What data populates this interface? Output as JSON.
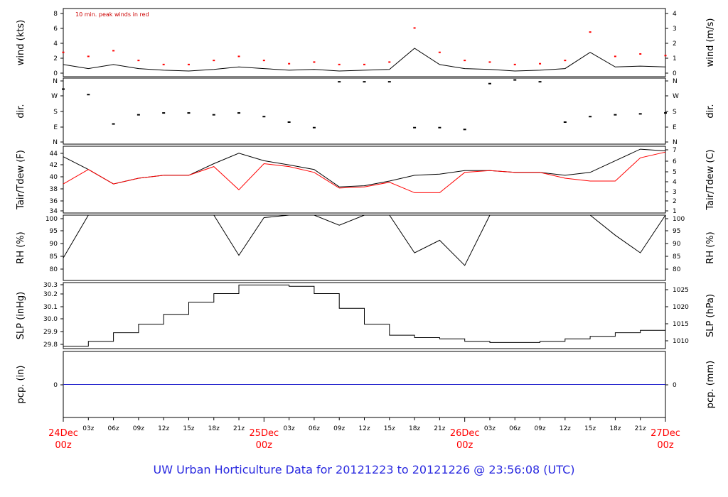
{
  "footer": {
    "text": "UW Urban Horticulture Data for 20121223  to  20121226 @ 23:56:08  (UTC)",
    "color": "#2a2ae0"
  },
  "colors": {
    "primary_series": "#000000",
    "secondary_series": "#ff0000",
    "precip_line": "#2222cc"
  },
  "x_axis": {
    "hour_ticks": [
      "03z",
      "06z",
      "09z",
      "12z",
      "15z",
      "18z",
      "21z",
      "03z",
      "06z",
      "09z",
      "12z",
      "15z",
      "18z",
      "21z",
      "03z",
      "06z",
      "09z",
      "12z",
      "15z",
      "18z",
      "21z"
    ],
    "date_labels": [
      {
        "day": "24Dec",
        "hour": "00z"
      },
      {
        "day": "25Dec",
        "hour": "00z"
      },
      {
        "day": "26Dec",
        "hour": "00z"
      },
      {
        "day": "27Dec",
        "hour": "00z"
      }
    ]
  },
  "chart_data": [
    {
      "type": "line",
      "id": "wind",
      "ylabel_left": "wind (kts)",
      "ylabel_right": "wind (m/s)",
      "annotation": "10 min. peak winds in red",
      "ylim": [
        0,
        8.4
      ],
      "left_ticks": [
        "0",
        "2",
        "4",
        "6",
        "8"
      ],
      "right_ticks": [
        "0",
        "1",
        "2",
        "3",
        "4"
      ],
      "x_hours": [
        0,
        3,
        6,
        9,
        12,
        15,
        18,
        21,
        24,
        27,
        30,
        33,
        36,
        39,
        42,
        45,
        48,
        51,
        54,
        57,
        60,
        63,
        66,
        69,
        72
      ],
      "series": [
        {
          "name": "wind",
          "values": [
            1.5,
            1.0,
            1.5,
            1.0,
            0.8,
            0.7,
            0.9,
            1.2,
            1.0,
            0.8,
            0.9,
            0.7,
            0.8,
            0.9,
            3.5,
            1.5,
            1.0,
            0.9,
            0.7,
            0.8,
            1.0,
            3.0,
            1.2,
            1.3,
            1.2
          ]
        },
        {
          "name": "10 min. peak winds",
          "values": [
            3.0,
            2.5,
            3.2,
            2.0,
            1.5,
            1.5,
            2.0,
            2.5,
            2.0,
            1.6,
            1.8,
            1.5,
            1.5,
            1.8,
            6.0,
            3.0,
            2.0,
            1.8,
            1.5,
            1.6,
            2.0,
            5.5,
            2.5,
            2.8,
            2.6
          ]
        }
      ]
    },
    {
      "type": "scatter",
      "id": "dir",
      "ylabel_left": "dir.",
      "ylabel_right": "dir.",
      "ylim": [
        0,
        360
      ],
      "left_ticks": [
        "N",
        "E",
        "S",
        "W",
        "N"
      ],
      "right_ticks": [
        "N",
        "E",
        "S",
        "W",
        "N"
      ],
      "x_hours": [
        0,
        3,
        6,
        9,
        12,
        15,
        18,
        21,
        24,
        27,
        30,
        33,
        36,
        39,
        42,
        45,
        48,
        51,
        54,
        57,
        60,
        63,
        66,
        69,
        72
      ],
      "series": [
        {
          "name": "dir",
          "values": [
            300,
            270,
            110,
            160,
            170,
            170,
            160,
            170,
            150,
            120,
            90,
            340,
            340,
            340,
            90,
            90,
            80,
            330,
            350,
            340,
            120,
            150,
            160,
            165,
            170
          ]
        }
      ]
    },
    {
      "type": "line",
      "id": "temp",
      "ylabel_left": "Tair/Tdew (F)",
      "ylabel_right": "Tair/Tdew (C)",
      "ylim": [
        33.5,
        45
      ],
      "left_ticks": [
        "34",
        "36",
        "38",
        "40",
        "42",
        "44"
      ],
      "right_ticks": [
        "1",
        "2",
        "3",
        "4",
        "5",
        "6",
        "7"
      ],
      "x_hours": [
        0,
        3,
        6,
        9,
        12,
        15,
        18,
        21,
        24,
        27,
        30,
        33,
        36,
        39,
        42,
        45,
        48,
        51,
        54,
        57,
        60,
        63,
        66,
        69,
        72
      ],
      "series": [
        {
          "name": "Tair",
          "values": [
            43.2,
            41.0,
            38.5,
            39.5,
            40.0,
            40.0,
            42.0,
            43.8,
            42.5,
            41.8,
            41.0,
            38.0,
            38.2,
            39.0,
            40.0,
            40.2,
            40.8,
            40.8,
            40.5,
            40.5,
            40.0,
            40.5,
            42.5,
            44.5,
            44.2
          ]
        },
        {
          "name": "Tdew",
          "values": [
            38.5,
            41.0,
            38.5,
            39.5,
            40.0,
            40.0,
            41.5,
            37.5,
            42.0,
            41.5,
            40.5,
            37.8,
            38.0,
            38.8,
            37.0,
            37.0,
            40.5,
            40.8,
            40.5,
            40.5,
            39.5,
            39.0,
            39.0,
            43.0,
            44.0
          ]
        }
      ]
    },
    {
      "type": "line",
      "id": "rh",
      "ylabel_left": "RH (%)",
      "ylabel_right": "RH (%)",
      "ylim": [
        74,
        100
      ],
      "left_ticks": [
        "80",
        "85",
        "90",
        "95",
        "100"
      ],
      "right_ticks": [
        "80",
        "85",
        "90",
        "95",
        "100"
      ],
      "x_hours": [
        0,
        3,
        6,
        9,
        12,
        15,
        18,
        21,
        24,
        27,
        30,
        33,
        36,
        39,
        42,
        45,
        48,
        51,
        54,
        57,
        60,
        63,
        66,
        69,
        72
      ],
      "series": [
        {
          "name": "RH",
          "values": [
            83,
            100,
            100,
            100,
            100,
            100,
            100,
            84,
            99,
            100,
            100,
            96,
            100,
            100,
            85,
            90,
            80,
            100,
            100,
            100,
            100,
            100,
            92,
            85,
            100
          ]
        }
      ]
    },
    {
      "type": "line",
      "id": "slp",
      "ylabel_left": "SLP (inHg)",
      "ylabel_right": "SLP (hPa)",
      "ylim": [
        29.77,
        30.31
      ],
      "left_ticks": [
        "29.8",
        "29.9",
        "30.0",
        "30.1",
        "30.2",
        "30.3"
      ],
      "right_ticks": [
        "1010",
        "1015",
        "1020",
        "1025"
      ],
      "x_hours": [
        0,
        3,
        6,
        9,
        12,
        15,
        18,
        21,
        24,
        27,
        30,
        33,
        36,
        39,
        42,
        45,
        48,
        51,
        54,
        57,
        60,
        63,
        66,
        69,
        72
      ],
      "series": [
        {
          "name": "SLP",
          "values": [
            29.79,
            29.83,
            29.9,
            29.97,
            30.05,
            30.15,
            30.22,
            30.29,
            30.29,
            30.28,
            30.22,
            30.1,
            29.97,
            29.88,
            29.86,
            29.85,
            29.83,
            29.82,
            29.82,
            29.83,
            29.85,
            29.87,
            29.9,
            29.92,
            29.95
          ]
        }
      ]
    },
    {
      "type": "line",
      "id": "pcp",
      "ylabel_left": "pcp. (in)",
      "ylabel_right": "pcp. (mm)",
      "ylim": [
        -1,
        1
      ],
      "left_ticks": [
        "0"
      ],
      "right_ticks": [
        "0"
      ],
      "x_hours": [
        0,
        72
      ],
      "series": [
        {
          "name": "pcp",
          "values": [
            0,
            0
          ]
        }
      ]
    }
  ]
}
